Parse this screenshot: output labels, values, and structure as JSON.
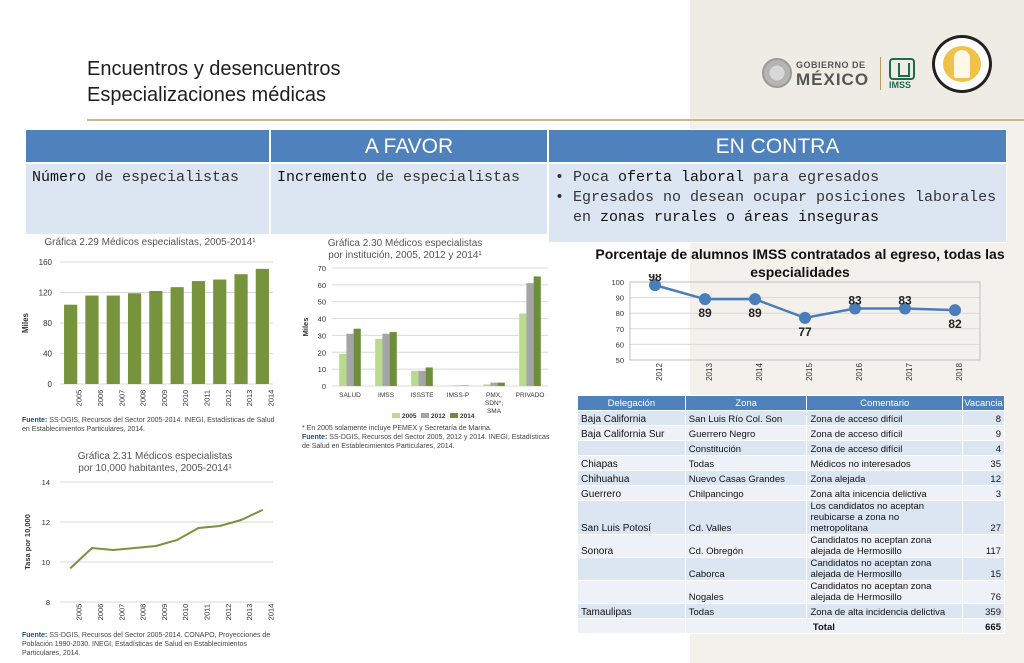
{
  "header": {
    "title_line1": "Encuentros y desencuentros",
    "title_line2": "Especializaciones médicas",
    "gobierno_label": "GOBIERNO DE",
    "mexico_label": "MÉXICO",
    "imss_label": "IMSS"
  },
  "comparison": {
    "col_a_favor": "A FAVOR",
    "col_en_contra": "EN CONTRA",
    "row_label_bold": "Número",
    "row_label_rest": " de especialistas",
    "favor_bold": "Incremento",
    "favor_rest": " de especialistas",
    "contra_items": [
      {
        "pre": "Poca ",
        "bold": "oferta laboral",
        "post": " para egresados"
      },
      {
        "pre": "Egresados no desean ocupar posiciones laborales en ",
        "bold": "zonas rurales o áreas inseguras",
        "post": ""
      }
    ]
  },
  "chart_229": {
    "title": "Gráfica 2.29 Médicos especialistas, 2005-2014¹",
    "ylabel": "Miles",
    "source": "Fuente: SS-DGIS, Recursos del Sector 2005-2014. INEGI, Estadísticas de Salud en Establecimientos Particulares, 2014.",
    "source_label": "Fuente:",
    "source_text": " SS-DGIS, Recursos del Sector 2005-2014. INEGI, Estadísticas de Salud en Establecimientos Particulares, 2014."
  },
  "chart_230": {
    "title_line1": "Gráfica 2.30 Médicos especialistas",
    "title_line2": "por institución, 2005, 2012 y 2014¹",
    "ylabel": "Miles",
    "note": "* En 2005 solamente incluye PEMEX y Secretaría de Marina.",
    "source_label": "Fuente:",
    "source_text": " SS-DGIS, Recursos del Sector 2005, 2012 y 2014. INEGI, Estadísticas de Salud en Establecimientos Particulares, 2014."
  },
  "chart_231": {
    "title_line1": "Gráfica 2.31 Médicos especialistas",
    "title_line2": "por 10,000 habitantes, 2005-2014¹",
    "ylabel": "Tasa por 10,000",
    "source_label": "Fuente:",
    "source_text": " SS-DGIS, Recursos del Sector 2005-2014. CONAPO, Proyecciones de Población 1990-2030. INEGI, Estadísticas de Salud en Establecimientos Particulares, 2014."
  },
  "chart_line": {
    "title": "Porcentaje de alumnos IMSS contratados al egreso, todas las especialidades"
  },
  "chart_data": [
    {
      "type": "bar",
      "title": "Gráfica 2.29 Médicos especialistas, 2005-2014¹",
      "ylabel": "Miles",
      "categories": [
        "2005",
        "2006",
        "2007",
        "2008",
        "2009",
        "2010",
        "2011",
        "2012",
        "2013",
        "2014"
      ],
      "values": [
        104,
        116,
        116,
        119,
        122,
        127,
        135,
        137,
        144,
        151
      ],
      "ylim": [
        0,
        160
      ],
      "yticks": [
        0,
        40,
        80,
        120,
        160
      ],
      "color": "#77933c",
      "grid": true
    },
    {
      "type": "bar",
      "title": "Gráfica 2.30 Médicos especialistas por institución, 2005, 2012 y 2014¹",
      "ylabel": "Miles",
      "categories": [
        "SALUD",
        "IMSS",
        "ISSSTE",
        "IMSS-P",
        "PMX, SDN*, SMA",
        "PRIVADO"
      ],
      "series": [
        {
          "name": "2005",
          "values": [
            19,
            28,
            9,
            0.3,
            1,
            43
          ],
          "color": "#b6dc8c"
        },
        {
          "name": "2012",
          "values": [
            31,
            31,
            9,
            0.3,
            2,
            61
          ],
          "color": "#a5a5a5"
        },
        {
          "name": "2014",
          "values": [
            34,
            32,
            11,
            0.3,
            2,
            65
          ],
          "color": "#6d8e3a"
        }
      ],
      "ylim": [
        0,
        70
      ],
      "yticks": [
        0,
        10,
        20,
        30,
        40,
        50,
        60,
        70
      ],
      "legend": "bottom",
      "grid": true
    },
    {
      "type": "line",
      "title": "Gráfica 2.31 Médicos especialistas por 10,000 habitantes, 2005-2014¹",
      "ylabel": "Tasa por 10,000",
      "x": [
        "2005",
        "2006",
        "2007",
        "2008",
        "2009",
        "2010",
        "2011",
        "2012",
        "2013",
        "2014"
      ],
      "values": [
        9.7,
        10.7,
        10.6,
        10.7,
        10.8,
        11.1,
        11.7,
        11.8,
        12.1,
        12.6
      ],
      "ylim": [
        8,
        14
      ],
      "yticks": [
        8,
        10,
        12,
        14
      ],
      "color": "#77933c",
      "grid": true
    },
    {
      "type": "line",
      "title": "Porcentaje de alumnos IMSS contratados al egreso, todas las especialidades",
      "x": [
        "2012",
        "2013",
        "2014",
        "2015",
        "2016",
        "2017",
        "2018"
      ],
      "values": [
        98,
        89,
        89,
        77,
        83,
        83,
        82
      ],
      "ylim": [
        50,
        100
      ],
      "yticks": [
        50,
        60,
        70,
        80,
        90,
        100
      ],
      "color": "#4a7ebb",
      "grid": true
    }
  ],
  "vacancy_table": {
    "headers": [
      "Delegación",
      "Zona",
      "Comentario",
      "Vacancia"
    ],
    "rows": [
      [
        "Baja California",
        "San Luis Río Col. Son",
        "Zona de acceso difícil",
        "8"
      ],
      [
        "Baja California Sur",
        "Guerrero Negro",
        "Zona de acceso difícil",
        "9"
      ],
      [
        "",
        "Constitución",
        "Zona de acceso difícil",
        "4"
      ],
      [
        "Chiapas",
        "Todas",
        "Médicos no interesados",
        "35"
      ],
      [
        "Chihuahua",
        "Nuevo Casas Grandes",
        "Zona alejada",
        "12"
      ],
      [
        "Guerrero",
        "Chilpancingo",
        "Zona alta inicencia delictiva",
        "3"
      ],
      [
        "San Luis Potosí",
        " Cd. Valles",
        "Los candidatos no aceptan reubicarse a zona no metropolitana",
        "27"
      ],
      [
        "Sonora",
        "Cd. Obregón",
        "Candidatos no aceptan zona alejada de Hermosillo",
        "117"
      ],
      [
        "",
        "Caborca",
        "Candidatos no aceptan zona alejada de Hermosillo",
        "15"
      ],
      [
        "",
        " Nogales",
        "Candidatos no aceptan zona alejada de Hermosillo",
        "76"
      ],
      [
        "Tamaulipas",
        "Todas",
        "Zona de alta incidencia delictiva",
        "359"
      ]
    ],
    "total_label": "Total",
    "total_value": "665"
  }
}
